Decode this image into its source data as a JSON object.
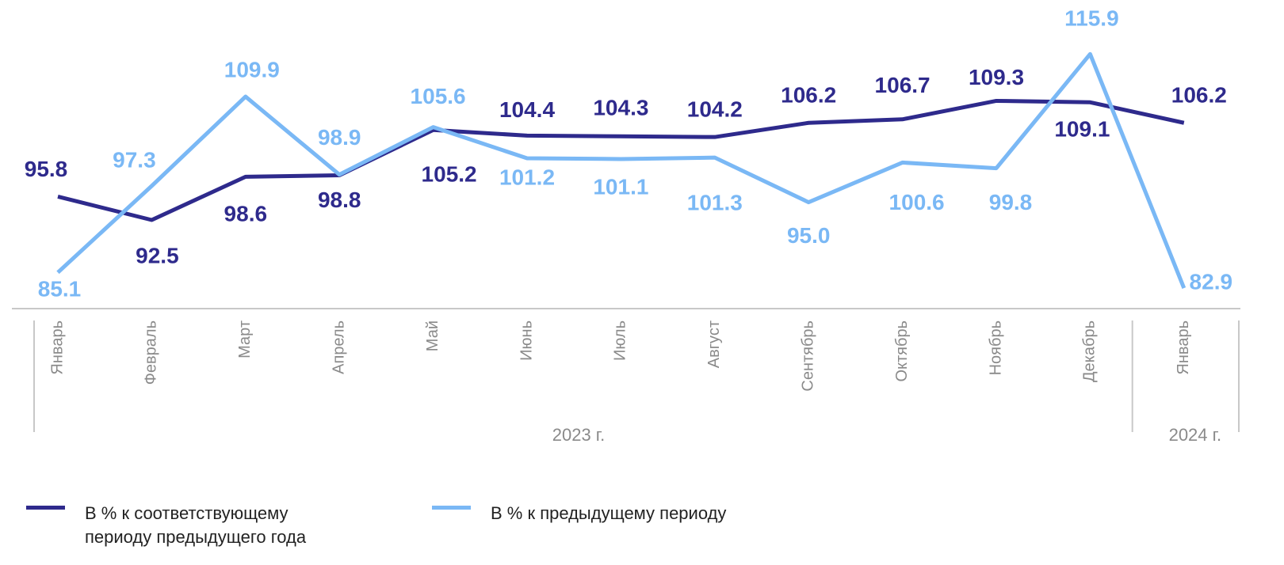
{
  "chart_data": {
    "type": "line",
    "categories": [
      "Январь",
      "Февраль",
      "Март",
      "Апрель",
      "Май",
      "Июнь",
      "Июль",
      "Август",
      "Сентябрь",
      "Октябрь",
      "Ноябрь",
      "Декабрь",
      "Январь"
    ],
    "groups": [
      {
        "label": "2023 г.",
        "size": 12
      },
      {
        "label": "2024 г.",
        "size": 1
      }
    ],
    "series": [
      {
        "name": "В % к соответствующему периоду предыдущего года",
        "color": "#2e2a8c",
        "values": [
          95.8,
          92.5,
          98.6,
          98.8,
          105.2,
          104.4,
          104.3,
          104.2,
          106.2,
          106.7,
          109.3,
          109.1,
          106.2
        ],
        "value_labels": [
          "95.8",
          "92.5",
          "98.6",
          "98.8",
          "105.2",
          "104.4",
          "104.3",
          "104.2",
          "106.2",
          "106.7",
          "109.3",
          "109.1",
          "106.2"
        ]
      },
      {
        "name": "В % к предыдущему периоду",
        "color": "#7ab8f5",
        "values": [
          85.1,
          97.3,
          109.9,
          98.9,
          105.6,
          101.2,
          101.1,
          101.3,
          95.0,
          100.6,
          99.8,
          115.9,
          82.9
        ],
        "value_labels": [
          "85.1",
          "97.3",
          "109.9",
          "98.9",
          "105.6",
          "101.2",
          "101.1",
          "101.3",
          "95.0",
          "100.6",
          "99.8",
          "115.9",
          "82.9"
        ]
      }
    ],
    "ylim": [
      80,
      120
    ]
  }
}
